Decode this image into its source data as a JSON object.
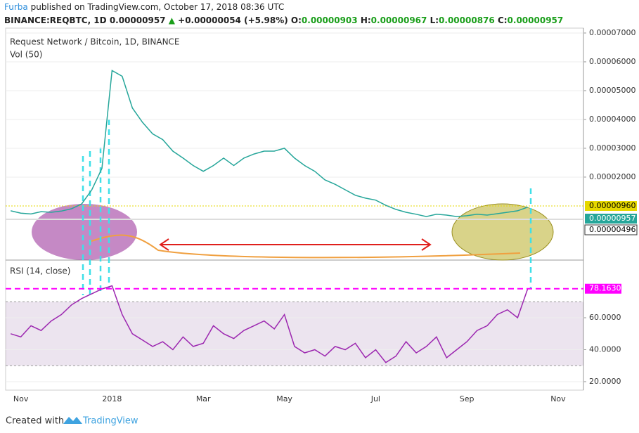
{
  "header": {
    "author": "Furba",
    "published": "published on TradingView.com, October 17, 2018 08:36 UTC",
    "symbol": "BINANCE:REQBTC, 1D",
    "last": "0.00000957",
    "arrow": "▲",
    "change": "+0.00000054 (+5.98%)",
    "o_label": "O:",
    "o": "0.00000903",
    "h_label": "H:",
    "h": "0.00000967",
    "l_label": "L:",
    "l": "0.00000876",
    "c_label": "C:",
    "c": "0.00000957"
  },
  "footer": {
    "created": "Created with",
    "brand": "TradingView"
  },
  "chart_data": [
    {
      "type": "line",
      "title": "Request Network / Bitcoin, 1D, BINANCE",
      "subtitle": "Vol (50)",
      "color": "#26a69a",
      "values": [
        8.3e-06,
        7.5e-06,
        7.2e-06,
        8e-06,
        7.8e-06,
        8.2e-06,
        9e-06,
        1.07e-05,
        1.56e-05,
        2.3e-05,
        5.7e-05,
        5.5e-05,
        4.4e-05,
        3.9e-05,
        3.5e-05,
        3.3e-05,
        2.9e-05,
        2.66e-05,
        2.4e-05,
        2.2e-05,
        2.4e-05,
        2.66e-05,
        2.4e-05,
        2.66e-05,
        2.8e-05,
        2.9e-05,
        2.9e-05,
        3e-05,
        2.66e-05,
        2.4e-05,
        2.2e-05,
        1.9e-05,
        1.75e-05,
        1.56e-05,
        1.37e-05,
        1.27e-05,
        1.2e-05,
        1.02e-05,
        8.8e-06,
        7.8e-06,
        7.1e-06,
        6.3e-06,
        7.1e-06,
        6.8e-06,
        6.3e-06,
        6.6e-06,
        7.1e-06,
        6.8e-06,
        7.3e-06,
        7.8e-06,
        8.3e-06,
        9.57e-06,
        null,
        null,
        null,
        null,
        null
      ],
      "ylim": [
        -8.8e-06,
        7.17e-05
      ],
      "yticks": [
        {
          "value": 2e-05,
          "label": "0.00002000"
        },
        {
          "value": 3e-05,
          "label": "0.00003000"
        },
        {
          "value": 4e-05,
          "label": "0.00004000"
        },
        {
          "value": 5e-05,
          "label": "0.00005000"
        },
        {
          "value": 6e-05,
          "label": "0.00006000"
        },
        {
          "value": 7e-05,
          "label": "0.00007000"
        }
      ],
      "price_labels": [
        "0.00000960",
        "0.00000957",
        "0.00000496"
      ]
    },
    {
      "type": "line",
      "title": "RSI (14, close)",
      "color": "#9c27b0",
      "categories": [
        null,
        "Nov",
        null,
        null,
        null,
        null,
        null,
        null,
        null,
        null,
        "2018",
        null,
        null,
        null,
        null,
        null,
        null,
        null,
        null,
        "Mar",
        null,
        null,
        null,
        null,
        null,
        null,
        null,
        "May",
        null,
        null,
        null,
        null,
        null,
        null,
        null,
        null,
        "Jul",
        null,
        null,
        null,
        null,
        null,
        null,
        null,
        null,
        "Sep",
        null,
        null,
        null,
        null,
        null,
        null,
        null,
        null,
        "Nov",
        null,
        null
      ],
      "values": [
        50,
        48,
        55,
        52,
        58,
        62,
        68,
        72,
        75,
        78,
        80,
        62,
        50,
        46,
        42,
        45,
        40,
        48,
        42,
        44,
        55,
        50,
        47,
        52,
        55,
        58,
        53,
        62,
        42,
        38,
        40,
        36,
        42,
        40,
        44,
        35,
        40,
        32,
        36,
        45,
        38,
        42,
        48,
        35,
        40,
        45,
        52,
        55,
        62,
        65,
        60,
        78.163,
        null,
        null,
        null,
        null,
        null
      ],
      "value_label": "78.1630",
      "band": [
        30,
        70
      ],
      "ylim": [
        14.7,
        95.2
      ],
      "yticks": [
        {
          "value": 20,
          "label": "20.0000"
        },
        {
          "value": 40,
          "label": "40.0000"
        },
        {
          "value": 60,
          "label": "60.0000"
        }
      ]
    }
  ]
}
